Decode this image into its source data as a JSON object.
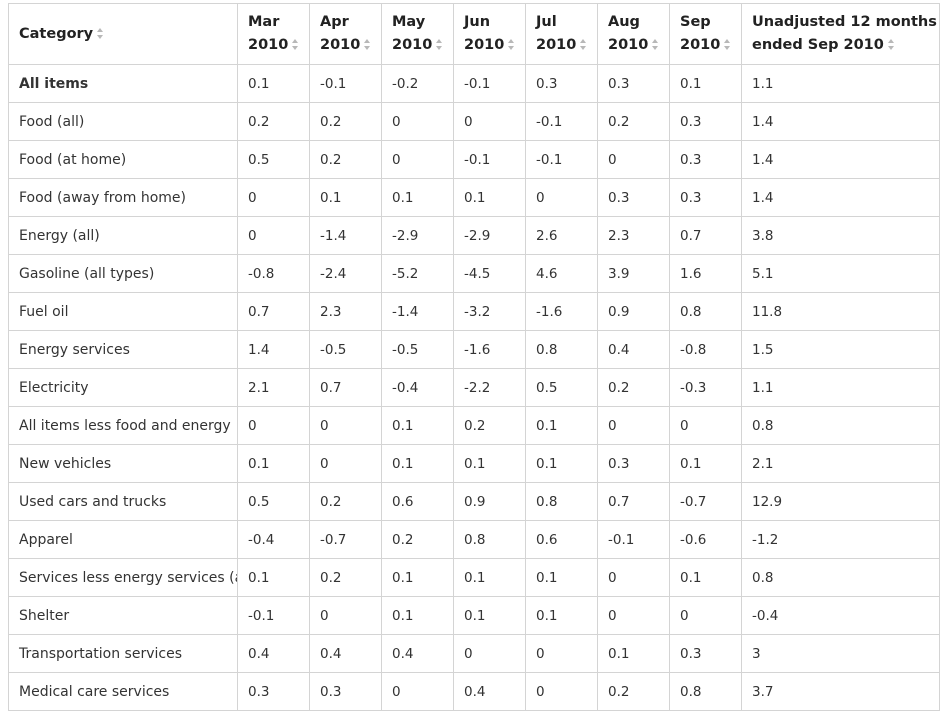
{
  "table": {
    "headers": [
      {
        "line1": "Category",
        "line2": ""
      },
      {
        "line1": "Mar",
        "line2": "2010"
      },
      {
        "line1": "Apr",
        "line2": "2010"
      },
      {
        "line1": "May",
        "line2": "2010"
      },
      {
        "line1": "Jun",
        "line2": "2010"
      },
      {
        "line1": "Jul",
        "line2": "2010"
      },
      {
        "line1": "Aug",
        "line2": "2010"
      },
      {
        "line1": "Sep",
        "line2": "2010"
      },
      {
        "line1": "Unadjusted 12 months",
        "line2": "ended Sep 2010"
      }
    ],
    "rows": [
      {
        "cells": [
          "All items",
          "0.1",
          "-0.1",
          "-0.2",
          "-0.1",
          "0.3",
          "0.3",
          "0.1",
          "1.1"
        ],
        "bold": true
      },
      {
        "cells": [
          "Food (all)",
          "0.2",
          "0.2",
          "0",
          "0",
          "-0.1",
          "0.2",
          "0.3",
          "1.4"
        ]
      },
      {
        "cells": [
          "Food (at home)",
          "0.5",
          "0.2",
          "0",
          "-0.1",
          "-0.1",
          "0",
          "0.3",
          "1.4"
        ]
      },
      {
        "cells": [
          "Food (away from home)",
          "0",
          "0.1",
          "0.1",
          "0.1",
          "0",
          "0.3",
          "0.3",
          "1.4"
        ]
      },
      {
        "cells": [
          "Energy (all)",
          "0",
          "-1.4",
          "-2.9",
          "-2.9",
          "2.6",
          "2.3",
          "0.7",
          "3.8"
        ]
      },
      {
        "cells": [
          "Gasoline (all types)",
          "-0.8",
          "-2.4",
          "-5.2",
          "-4.5",
          "4.6",
          "3.9",
          "1.6",
          "5.1"
        ]
      },
      {
        "cells": [
          "Fuel oil",
          "0.7",
          "2.3",
          "-1.4",
          "-3.2",
          "-1.6",
          "0.9",
          "0.8",
          "11.8"
        ]
      },
      {
        "cells": [
          "Energy services",
          "1.4",
          "-0.5",
          "-0.5",
          "-1.6",
          "0.8",
          "0.4",
          "-0.8",
          "1.5"
        ]
      },
      {
        "cells": [
          "Electricity",
          "2.1",
          "0.7",
          "-0.4",
          "-2.2",
          "0.5",
          "0.2",
          "-0.3",
          "1.1"
        ]
      },
      {
        "cells": [
          "All items less food and energy",
          "0",
          "0",
          "0.1",
          "0.2",
          "0.1",
          "0",
          "0",
          "0.8"
        ]
      },
      {
        "cells": [
          "New vehicles",
          "0.1",
          "0",
          "0.1",
          "0.1",
          "0.1",
          "0.3",
          "0.1",
          "2.1"
        ]
      },
      {
        "cells": [
          "Used cars and trucks",
          "0.5",
          "0.2",
          "0.6",
          "0.9",
          "0.8",
          "0.7",
          "-0.7",
          "12.9"
        ]
      },
      {
        "cells": [
          "Apparel",
          "-0.4",
          "-0.7",
          "0.2",
          "0.8",
          "0.6",
          "-0.1",
          "-0.6",
          "-1.2"
        ]
      },
      {
        "cells": [
          "Services less energy services (all)",
          "0.1",
          "0.2",
          "0.1",
          "0.1",
          "0.1",
          "0",
          "0.1",
          "0.8"
        ]
      },
      {
        "cells": [
          "Shelter",
          "-0.1",
          "0",
          "0.1",
          "0.1",
          "0.1",
          "0",
          "0",
          "-0.4"
        ]
      },
      {
        "cells": [
          "Transportation services",
          "0.4",
          "0.4",
          "0.4",
          "0",
          "0",
          "0.1",
          "0.3",
          "3"
        ]
      },
      {
        "cells": [
          "Medical care services",
          "0.3",
          "0.3",
          "0",
          "0.4",
          "0",
          "0.2",
          "0.8",
          "3.7"
        ]
      }
    ]
  }
}
